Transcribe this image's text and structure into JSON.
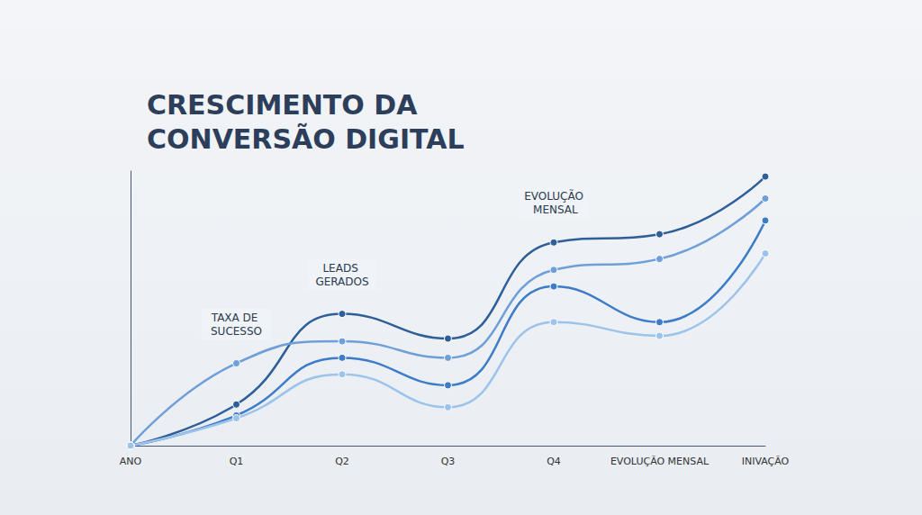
{
  "chart_data": {
    "type": "line",
    "title": "CRESCIMENTO DA CONVERSÃO DIGITAL",
    "categories": [
      "ANO",
      "Q1",
      "Q2",
      "Q3",
      "Q4",
      "EVOLUÇÃO MENSAL",
      "INIVAÇÃO"
    ],
    "series": [
      {
        "color": "#2f5f98",
        "values": [
          0,
          15,
          48,
          39,
          74,
          77,
          98
        ]
      },
      {
        "color": "#6f9fd8",
        "values": [
          0,
          30,
          38,
          32,
          64,
          68,
          90
        ]
      },
      {
        "color": "#3d7cc9",
        "values": [
          0,
          11,
          32,
          22,
          58,
          45,
          82
        ]
      },
      {
        "color": "#9cc3ea",
        "values": [
          0,
          10,
          26,
          14,
          45,
          40,
          70
        ]
      }
    ],
    "ylim": [
      0,
      100
    ],
    "grid": false,
    "tick_labels": "x",
    "marker": "circle",
    "line_style": "solid",
    "annotations": [
      {
        "text": "TAXA DE SUCESSO",
        "x": "Q1",
        "y": 30
      },
      {
        "text": "LEADS GERADOS",
        "x": "Q2",
        "y": 48
      },
      {
        "text": "EVOLUÇÃO MENSAL",
        "x": "Q4",
        "y": 74
      }
    ]
  }
}
